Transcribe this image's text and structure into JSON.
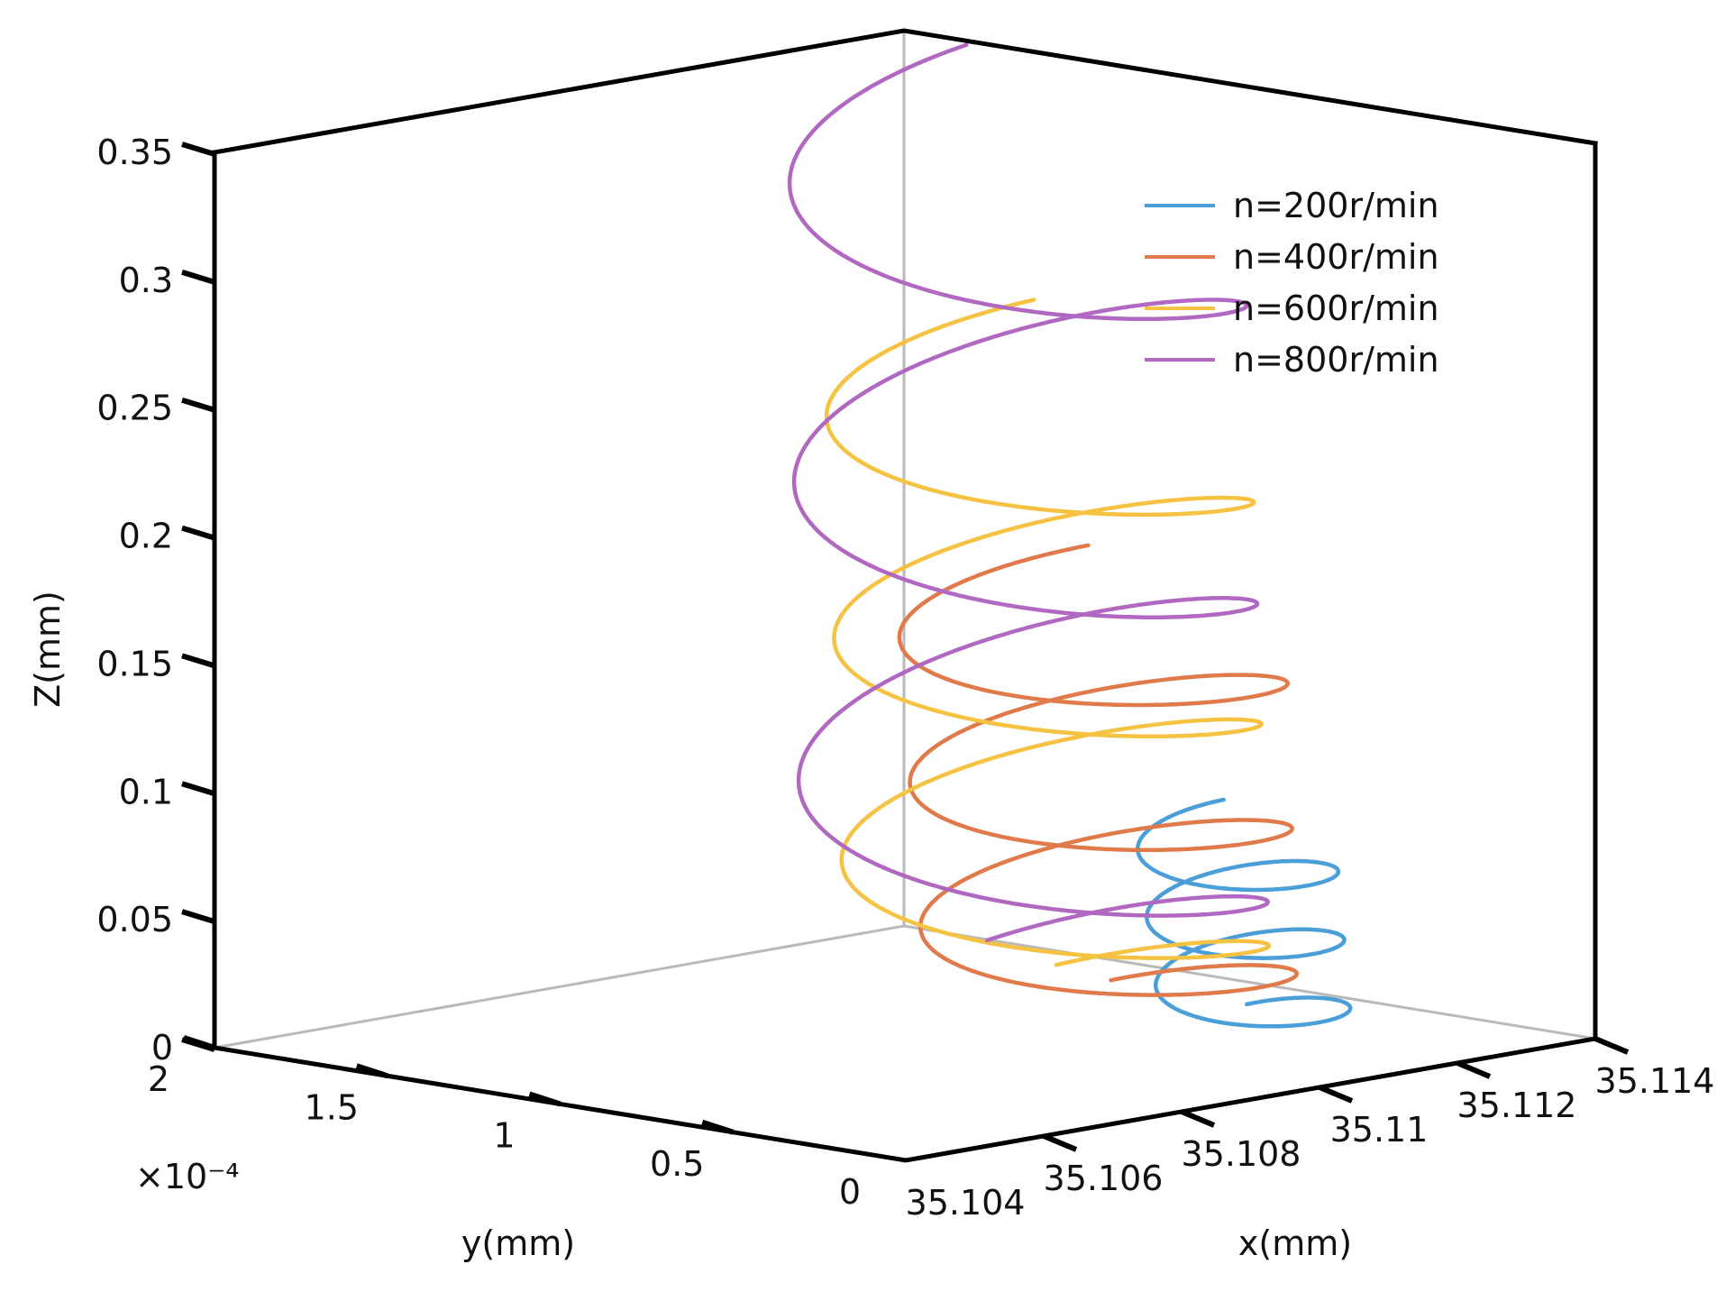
{
  "chart_data": {
    "type": "line",
    "projection": "3d",
    "xlabel": "x(mm)",
    "ylabel": "y(mm)",
    "zlabel": "Z(mm)",
    "xlim": [
      35.104,
      35.114
    ],
    "ylim": [
      0,
      2
    ],
    "zlim": [
      0,
      0.35
    ],
    "x_ticks": [
      "35.104",
      "35.106",
      "35.108",
      "35.11",
      "35.112",
      "35.114"
    ],
    "y_ticks": [
      "0",
      "0.5",
      "1",
      "1.5",
      "2"
    ],
    "z_ticks": [
      "0",
      "0.05",
      "0.1",
      "0.15",
      "0.2",
      "0.25",
      "0.3",
      "0.35"
    ],
    "y_multiplier": "×10⁻⁴",
    "legend_position": "top-right",
    "series": [
      {
        "name": "n=200r/min",
        "color": "#4a9fd8",
        "z_range": [
          0,
          0.08
        ],
        "turns": 3.0
      },
      {
        "name": "n=400r/min",
        "color": "#e07a4a",
        "z_range": [
          0,
          0.17
        ],
        "turns": 3.0
      },
      {
        "name": "n=600r/min",
        "color": "#f5c242",
        "z_range": [
          0,
          0.26
        ],
        "turns": 3.0
      },
      {
        "name": "n=800r/min",
        "color": "#b068c0",
        "z_range": [
          0,
          0.35
        ],
        "turns": 3.0
      }
    ]
  }
}
